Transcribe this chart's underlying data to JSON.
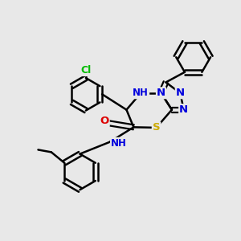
{
  "background_color": "#e8e8e8",
  "atom_colors": {
    "C": "#000000",
    "N": "#0000dd",
    "O": "#dd0000",
    "S": "#ccaa00",
    "Cl": "#00bb00",
    "H": "#0000dd"
  },
  "figsize": [
    3.0,
    3.0
  ],
  "dpi": 100
}
